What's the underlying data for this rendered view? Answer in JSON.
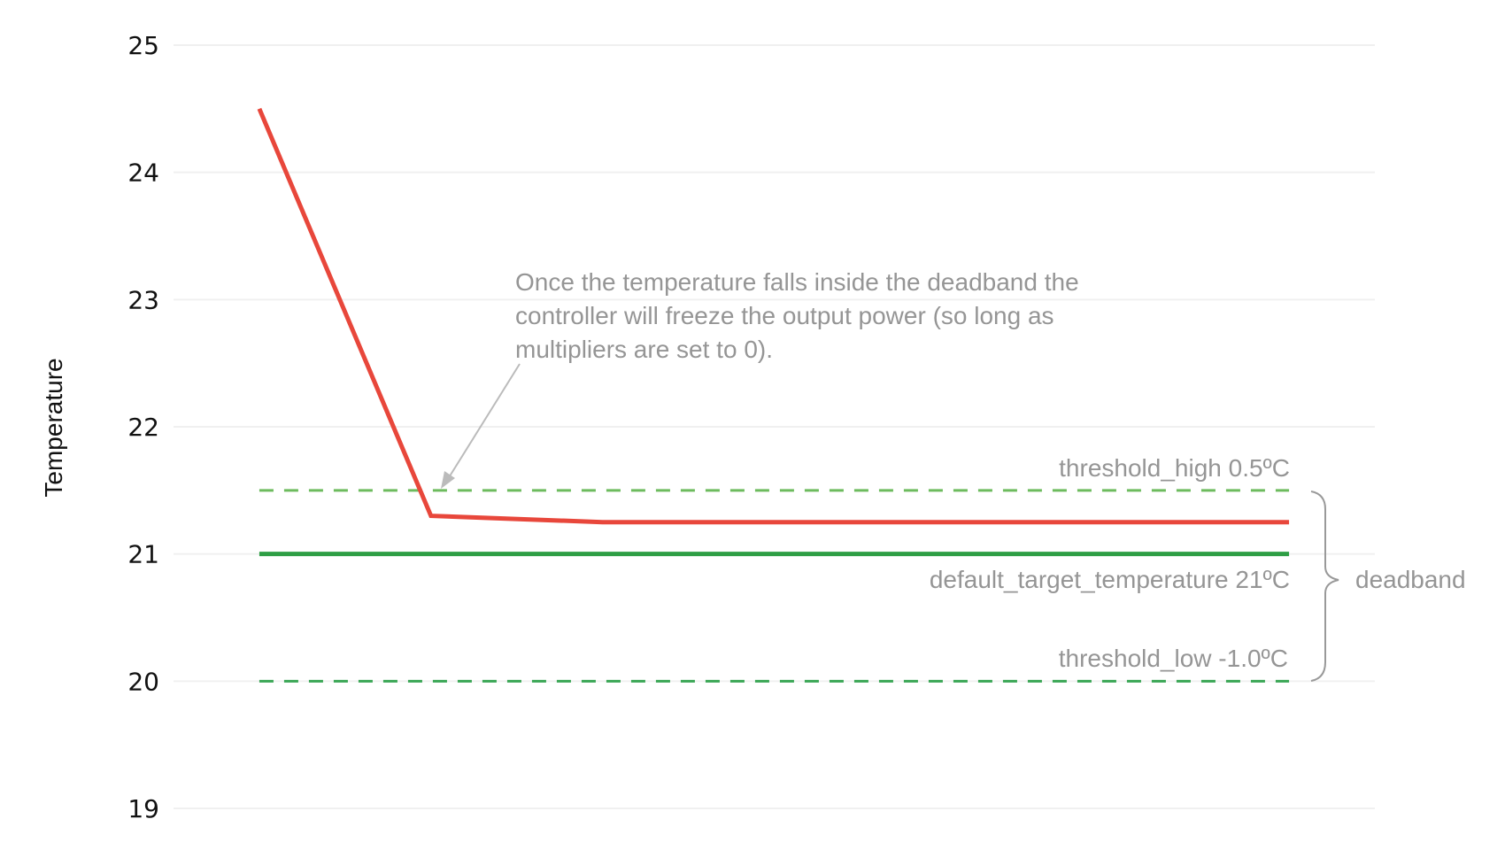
{
  "chart_data": {
    "type": "line",
    "title": "",
    "xlabel": "",
    "ylabel": "Temperature",
    "xlim": [
      -0.5,
      6.5
    ],
    "ylim": [
      19,
      25
    ],
    "yticks": [
      19,
      20,
      21,
      22,
      23,
      24,
      25
    ],
    "grid": true,
    "series": [
      {
        "id": "temperature",
        "color": "#e8473b",
        "style": "solid",
        "x": [
          0,
          1,
          2,
          6
        ],
        "y": [
          24.5,
          21.3,
          21.25,
          21.25
        ]
      },
      {
        "id": "target",
        "color": "#2e9e45",
        "style": "solid",
        "x": [
          0,
          6
        ],
        "y": [
          21,
          21
        ]
      },
      {
        "id": "threshold_high",
        "color": "#6dbb5e",
        "style": "dashed",
        "x": [
          0,
          6
        ],
        "y": [
          21.5,
          21.5
        ]
      },
      {
        "id": "threshold_low",
        "color": "#3aa655",
        "style": "dashed",
        "x": [
          0,
          6
        ],
        "y": [
          20,
          20
        ]
      }
    ],
    "annotations": {
      "note_lines": [
        "Once the temperature falls inside the deadband the",
        "controller will freeze the output power (so long as",
        "multipliers are set to 0)."
      ],
      "threshold_high": "threshold_high  0.5ºC",
      "target": "default_target_temperature  21ºC",
      "threshold_low": "threshold_low  -1.0ºC",
      "deadband": "deadband"
    }
  }
}
